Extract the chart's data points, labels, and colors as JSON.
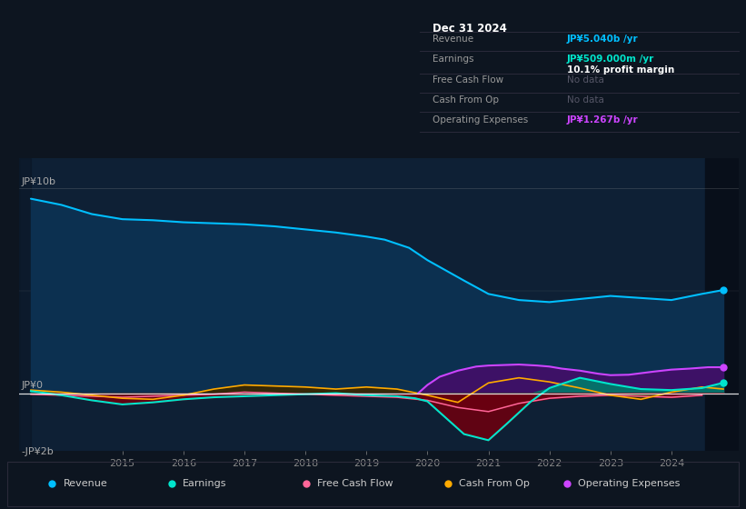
{
  "background_color": "#0d1520",
  "chart_area_color": "#0e2035",
  "dark_overlay_color": "#080f1a",
  "title_text": "Dec 31 2024",
  "info_rows": [
    {
      "label": "Revenue",
      "value": "JP¥5.040b /yr",
      "value_color": "#00bfff",
      "note": null
    },
    {
      "label": "Earnings",
      "value": "JP¥509.000m /yr",
      "value_color": "#00e5cc",
      "note": "10.1% profit margin"
    },
    {
      "label": "Free Cash Flow",
      "value": "No data",
      "value_color": "#666666",
      "note": null
    },
    {
      "label": "Cash From Op",
      "value": "No data",
      "value_color": "#666666",
      "note": null
    },
    {
      "label": "Operating Expenses",
      "value": "JP¥1.267b /yr",
      "value_color": "#cc44ff",
      "note": null
    }
  ],
  "ylabel_top": "JP¥10b",
  "ylabel_zero": "JP¥0",
  "ylabel_neg": "-JP¥2b",
  "ylim": [
    -2.8,
    11.5
  ],
  "xlim": [
    2013.3,
    2025.1
  ],
  "xtick_positions": [
    2015,
    2016,
    2017,
    2018,
    2019,
    2020,
    2021,
    2022,
    2023,
    2024
  ],
  "legend": [
    {
      "label": "Revenue",
      "color": "#00bfff"
    },
    {
      "label": "Earnings",
      "color": "#00e5cc"
    },
    {
      "label": "Free Cash Flow",
      "color": "#ff6699"
    },
    {
      "label": "Cash From Op",
      "color": "#ffaa00"
    },
    {
      "label": "Operating Expenses",
      "color": "#cc44ff"
    }
  ],
  "revenue_x": [
    2013.5,
    2014.0,
    2014.5,
    2015.0,
    2015.5,
    2016.0,
    2016.5,
    2017.0,
    2017.5,
    2018.0,
    2018.5,
    2019.0,
    2019.3,
    2019.7,
    2020.0,
    2020.3,
    2020.6,
    2021.0,
    2021.5,
    2022.0,
    2022.5,
    2023.0,
    2023.5,
    2024.0,
    2024.5,
    2024.85
  ],
  "revenue_y": [
    9.5,
    9.2,
    8.75,
    8.5,
    8.45,
    8.35,
    8.3,
    8.25,
    8.15,
    8.0,
    7.85,
    7.65,
    7.5,
    7.1,
    6.5,
    6.0,
    5.5,
    4.85,
    4.55,
    4.45,
    4.6,
    4.75,
    4.65,
    4.55,
    4.85,
    5.04
  ],
  "earnings_x": [
    2013.5,
    2014.0,
    2014.5,
    2015.0,
    2015.5,
    2016.0,
    2016.5,
    2017.0,
    2017.5,
    2018.0,
    2018.5,
    2019.0,
    2019.5,
    2019.8,
    2020.0,
    2020.3,
    2020.6,
    2021.0,
    2021.3,
    2021.7,
    2022.0,
    2022.5,
    2023.0,
    2023.5,
    2024.0,
    2024.5,
    2024.85
  ],
  "earnings_y": [
    0.1,
    -0.1,
    -0.35,
    -0.55,
    -0.45,
    -0.3,
    -0.2,
    -0.15,
    -0.1,
    -0.05,
    0.0,
    -0.1,
    -0.15,
    -0.25,
    -0.4,
    -1.2,
    -2.0,
    -2.3,
    -1.5,
    -0.4,
    0.25,
    0.75,
    0.45,
    0.2,
    0.15,
    0.25,
    0.509
  ],
  "fcf_x": [
    2013.5,
    2014.0,
    2014.5,
    2015.0,
    2015.5,
    2016.0,
    2016.5,
    2017.0,
    2017.5,
    2018.0,
    2018.5,
    2019.0,
    2019.5,
    2020.0,
    2020.5,
    2021.0,
    2021.5,
    2022.0,
    2022.5,
    2023.0,
    2023.5,
    2024.0,
    2024.5
  ],
  "fcf_y": [
    -0.05,
    -0.1,
    -0.15,
    -0.2,
    -0.15,
    -0.1,
    -0.05,
    0.05,
    0.0,
    -0.05,
    -0.1,
    -0.15,
    -0.2,
    -0.35,
    -0.7,
    -0.9,
    -0.5,
    -0.25,
    -0.15,
    -0.1,
    -0.15,
    -0.2,
    -0.1
  ],
  "cop_x": [
    2013.5,
    2014.0,
    2014.5,
    2015.0,
    2015.5,
    2016.0,
    2016.5,
    2017.0,
    2017.5,
    2018.0,
    2018.5,
    2019.0,
    2019.5,
    2020.0,
    2020.5,
    2021.0,
    2021.5,
    2022.0,
    2022.5,
    2023.0,
    2023.5,
    2024.0,
    2024.5,
    2024.85
  ],
  "cop_y": [
    0.15,
    0.05,
    -0.1,
    -0.25,
    -0.3,
    -0.1,
    0.2,
    0.4,
    0.35,
    0.3,
    0.2,
    0.3,
    0.2,
    -0.1,
    -0.45,
    0.5,
    0.75,
    0.55,
    0.25,
    -0.1,
    -0.3,
    0.05,
    0.3,
    0.2
  ],
  "opex_x": [
    2019.85,
    2020.0,
    2020.2,
    2020.5,
    2020.8,
    2021.0,
    2021.3,
    2021.5,
    2021.8,
    2022.0,
    2022.2,
    2022.5,
    2022.8,
    2023.0,
    2023.3,
    2023.7,
    2024.0,
    2024.3,
    2024.6,
    2024.85
  ],
  "opex_y": [
    0.0,
    0.4,
    0.8,
    1.1,
    1.3,
    1.35,
    1.38,
    1.4,
    1.35,
    1.3,
    1.2,
    1.1,
    0.95,
    0.88,
    0.9,
    1.05,
    1.15,
    1.2,
    1.267,
    1.267
  ]
}
